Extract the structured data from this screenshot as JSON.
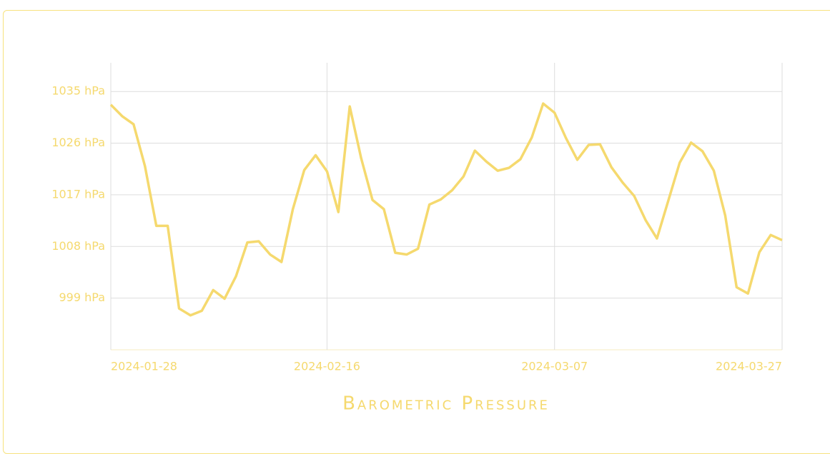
{
  "chart_data": {
    "type": "line",
    "title": "Barometric Pressure",
    "x": [
      "2024-01-28",
      "2024-01-29",
      "2024-01-30",
      "2024-01-31",
      "2024-02-01",
      "2024-02-02",
      "2024-02-03",
      "2024-02-04",
      "2024-02-05",
      "2024-02-06",
      "2024-02-07",
      "2024-02-08",
      "2024-02-09",
      "2024-02-10",
      "2024-02-11",
      "2024-02-12",
      "2024-02-13",
      "2024-02-14",
      "2024-02-15",
      "2024-02-16",
      "2024-02-17",
      "2024-02-18",
      "2024-02-19",
      "2024-02-20",
      "2024-02-21",
      "2024-02-22",
      "2024-02-23",
      "2024-02-24",
      "2024-02-25",
      "2024-02-26",
      "2024-02-27",
      "2024-02-28",
      "2024-02-29",
      "2024-03-01",
      "2024-03-02",
      "2024-03-03",
      "2024-03-04",
      "2024-03-05",
      "2024-03-06",
      "2024-03-07",
      "2024-03-08",
      "2024-03-09",
      "2024-03-10",
      "2024-03-11",
      "2024-03-12",
      "2024-03-13",
      "2024-03-14",
      "2024-03-15",
      "2024-03-16",
      "2024-03-17",
      "2024-03-18",
      "2024-03-19",
      "2024-03-20",
      "2024-03-21",
      "2024-03-22",
      "2024-03-23",
      "2024-03-24",
      "2024-03-25",
      "2024-03-26",
      "2024-03-27"
    ],
    "series": [
      {
        "color": "#f5d96e",
        "values": [
          1032.7,
          1030.7,
          1029.3,
          1022.0,
          1011.6,
          1011.6,
          997.2,
          996.0,
          996.8,
          1000.4,
          998.9,
          1002.8,
          1008.7,
          1008.9,
          1006.6,
          1005.3,
          1014.5,
          1021.3,
          1023.9,
          1021.1,
          1014.0,
          1032.4,
          1023.4,
          1016.1,
          1014.5,
          1006.9,
          1006.6,
          1007.6,
          1015.3,
          1016.2,
          1017.8,
          1020.2,
          1024.7,
          1022.8,
          1021.2,
          1021.7,
          1023.2,
          1027.0,
          1032.9,
          1031.3,
          1026.9,
          1023.1,
          1025.7,
          1025.8,
          1021.8,
          1019.1,
          1016.8,
          1012.6,
          1009.4,
          1016.0,
          1022.6,
          1026.1,
          1024.6,
          1021.2,
          1013.4,
          1000.9,
          999.8,
          1007.0,
          1010.0,
          1009.1
        ]
      }
    ],
    "xlim": [
      "2024-01-28",
      "2024-03-27"
    ],
    "xticks": [
      "2024-01-28",
      "2024-02-16",
      "2024-03-07",
      "2024-03-27"
    ],
    "ylim": [
      990,
      1040
    ],
    "yticks": [
      {
        "value": 999,
        "label": "999 hPa"
      },
      {
        "value": 1008,
        "label": "1008 hPa"
      },
      {
        "value": 1017,
        "label": "1017 hPa"
      },
      {
        "value": 1026,
        "label": "1026 hPa"
      },
      {
        "value": 1035,
        "label": "1035 hPa"
      }
    ],
    "grid": true
  }
}
